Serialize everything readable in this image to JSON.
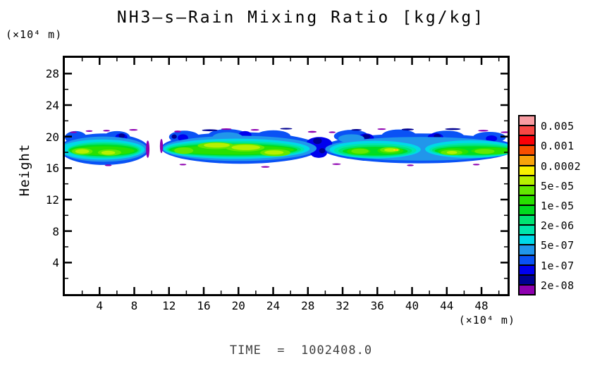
{
  "title": "NH3–s–Rain Mixing Ratio [kg/kg]",
  "time_label": "TIME  =  1002408.0",
  "axes": {
    "y_title": "Height",
    "y_unit": "(×10⁴ m)",
    "x_unit": "(×10⁴ m)",
    "x_ticks": [
      4,
      8,
      12,
      16,
      20,
      24,
      28,
      32,
      36,
      40,
      44,
      48
    ],
    "x_minor_ticks": [
      2,
      6,
      10,
      14,
      18,
      22,
      26,
      30,
      34,
      38,
      42,
      46,
      50
    ],
    "y_ticks": [
      4,
      8,
      12,
      16,
      20,
      24,
      28
    ],
    "y_minor_ticks": [
      2,
      6,
      10,
      14,
      18,
      22,
      26
    ],
    "x_range": [
      0,
      51
    ],
    "y_range": [
      0,
      30
    ]
  },
  "chart_data": {
    "type": "filled_contour",
    "title": "NH3–s–Rain Mixing Ratio [kg/kg]",
    "xlabel": "",
    "ylabel": "Height",
    "x_unit": "×10⁴ m",
    "y_unit": "×10⁴ m",
    "x_range": [
      0,
      51
    ],
    "y_range": [
      0,
      30
    ],
    "time": 1002408.0,
    "levels": [
      2e-08,
      5e-08,
      1e-07,
      2e-07,
      5e-07,
      1e-06,
      2e-06,
      5e-06,
      1e-05,
      2e-05,
      5e-05,
      0.0001,
      0.0002,
      0.0005,
      0.001,
      0.002,
      0.005
    ],
    "colorbar_labels": [
      "0.005",
      "0.001",
      "0.0002",
      "5e-05",
      "1e-05",
      "2e-06",
      "5e-07",
      "1e-07",
      "2e-08"
    ],
    "palette": [
      "#F89CA2",
      "#F84744",
      "#FB0007",
      "#F94E00",
      "#F9A30B",
      "#FAF000",
      "#B8F000",
      "#64E800",
      "#28E000",
      "#00DC20",
      "#00E373",
      "#00E6AC",
      "#00D9E8",
      "#2196EB",
      "#0A52F5",
      "#0000EE",
      "#000091",
      "#8E00B0"
    ],
    "band_summary": {
      "description": "Single quasi-horizontal rain layer between heights 16 and 21 (×10⁴ m) spanning the full x domain, gap near x 9.6–11.1, thin pinch near x 29–30, cores reach 5e-05 to 1e-04 kg/kg with an isolated 1e-04–2e-04 spot near x 38",
      "height_extent": [
        16,
        21
      ],
      "x_extent": [
        0,
        51
      ],
      "gaps_x": [
        [
          9.6,
          11.1
        ]
      ],
      "pinch_x": [
        29,
        30.3
      ],
      "core_max_level": 0.0002
    },
    "blobs": [
      [
        -0.6,
        9.7,
        18.4,
        2.0,
        14
      ],
      [
        11.1,
        29.4,
        18.55,
        2.0,
        14
      ],
      [
        29.6,
        52.0,
        18.5,
        1.9,
        14
      ],
      [
        0.0,
        2.5,
        19.9,
        0.8,
        14
      ],
      [
        4.5,
        7.5,
        19.95,
        0.75,
        14
      ],
      [
        12.0,
        15.5,
        19.95,
        0.8,
        14
      ],
      [
        16.5,
        21.0,
        20.15,
        0.8,
        14
      ],
      [
        22.0,
        26.0,
        20.05,
        0.75,
        14
      ],
      [
        31.0,
        35.0,
        20.05,
        0.8,
        14
      ],
      [
        36.5,
        40.5,
        20.1,
        0.8,
        14
      ],
      [
        42.0,
        46.0,
        20.0,
        0.75,
        14
      ],
      [
        47.0,
        50.8,
        19.9,
        0.7,
        14
      ],
      [
        5.8,
        7.2,
        19.9,
        0.5,
        15
      ],
      [
        13.0,
        14.2,
        19.85,
        0.45,
        15
      ],
      [
        20.0,
        21.5,
        20.2,
        0.5,
        15
      ],
      [
        27.8,
        30.8,
        19.1,
        0.85,
        15
      ],
      [
        28.3,
        30.2,
        17.9,
        0.6,
        15
      ],
      [
        33.8,
        35.6,
        19.8,
        0.6,
        15
      ],
      [
        41.8,
        43.6,
        19.9,
        0.55,
        15
      ],
      [
        48.5,
        49.8,
        19.75,
        0.4,
        15
      ],
      [
        6.2,
        6.9,
        20.1,
        0.3,
        16
      ],
      [
        12.3,
        12.9,
        20.0,
        0.28,
        16
      ],
      [
        28.6,
        29.6,
        19.45,
        0.4,
        16
      ],
      [
        29.3,
        30.0,
        18.2,
        0.33,
        16
      ],
      [
        34.3,
        35.2,
        20.0,
        0.3,
        16
      ],
      [
        42.5,
        43.3,
        20.05,
        0.28,
        16
      ],
      [
        -0.6,
        9.5,
        18.4,
        1.6,
        13
      ],
      [
        11.2,
        29.0,
        18.5,
        1.6,
        13
      ],
      [
        30.0,
        52.0,
        18.45,
        1.5,
        13
      ],
      [
        17.0,
        20.5,
        19.9,
        0.65,
        13
      ],
      [
        31.5,
        34.5,
        19.75,
        0.55,
        13
      ],
      [
        -0.6,
        9.2,
        18.35,
        1.28,
        12
      ],
      [
        11.35,
        28.2,
        18.45,
        1.28,
        12
      ],
      [
        30.5,
        41.0,
        18.35,
        1.12,
        12
      ],
      [
        41.5,
        52.0,
        18.4,
        1.12,
        12
      ],
      [
        0.3,
        8.8,
        18.3,
        1.05,
        11
      ],
      [
        11.6,
        27.6,
        18.4,
        1.05,
        11
      ],
      [
        31.0,
        40.5,
        18.25,
        0.9,
        11
      ],
      [
        42.0,
        52.0,
        18.32,
        0.88,
        11
      ],
      [
        0.4,
        8.6,
        18.28,
        0.88,
        10
      ],
      [
        11.8,
        27.2,
        18.36,
        0.88,
        10
      ],
      [
        31.5,
        40.0,
        18.2,
        0.72,
        10
      ],
      [
        42.3,
        52.0,
        18.28,
        0.7,
        10
      ],
      [
        0.5,
        8.4,
        18.25,
        0.72,
        9
      ],
      [
        12.0,
        26.8,
        18.33,
        0.72,
        9
      ],
      [
        32.0,
        39.5,
        18.15,
        0.55,
        9
      ],
      [
        42.6,
        51.8,
        18.22,
        0.55,
        9
      ],
      [
        0.6,
        8.0,
        18.2,
        0.56,
        8
      ],
      [
        12.3,
        26.4,
        18.3,
        0.58,
        8
      ],
      [
        32.5,
        35.2,
        18.12,
        0.45,
        8
      ],
      [
        36.0,
        39.0,
        18.22,
        0.45,
        8
      ],
      [
        43.0,
        46.5,
        18.08,
        0.45,
        8
      ],
      [
        46.8,
        51.6,
        18.18,
        0.42,
        8
      ],
      [
        0.8,
        3.2,
        18.12,
        0.42,
        7
      ],
      [
        3.8,
        6.5,
        17.98,
        0.4,
        7
      ],
      [
        12.6,
        14.8,
        18.22,
        0.42,
        7
      ],
      [
        15.3,
        19.5,
        18.85,
        0.45,
        7
      ],
      [
        18.5,
        23.0,
        18.6,
        0.5,
        7
      ],
      [
        22.5,
        26.0,
        17.95,
        0.45,
        7
      ],
      [
        33.0,
        35.0,
        18.15,
        0.32,
        7
      ],
      [
        36.3,
        38.6,
        18.3,
        0.35,
        7
      ],
      [
        43.3,
        45.8,
        17.98,
        0.33,
        7
      ],
      [
        47.2,
        49.5,
        18.12,
        0.32,
        7
      ],
      [
        1.2,
        2.8,
        18.12,
        0.28,
        6
      ],
      [
        4.2,
        5.8,
        17.95,
        0.25,
        6
      ],
      [
        16.0,
        19.0,
        18.9,
        0.3,
        6
      ],
      [
        19.2,
        22.5,
        18.62,
        0.33,
        6
      ],
      [
        23.0,
        25.2,
        17.98,
        0.27,
        6
      ],
      [
        36.8,
        38.2,
        18.3,
        0.22,
        6
      ],
      [
        44.0,
        45.2,
        17.98,
        0.2,
        6
      ],
      [
        37.85,
        38.45,
        18.3,
        0.13,
        5
      ],
      [
        38.0,
        38.3,
        18.3,
        0.07,
        4
      ],
      [
        7.4,
        8.4,
        20.85,
        0.1,
        17
      ],
      [
        12.6,
        13.4,
        20.65,
        0.12,
        17
      ],
      [
        15.8,
        17.6,
        20.8,
        0.12,
        16
      ],
      [
        18.0,
        19.2,
        20.95,
        0.1,
        17
      ],
      [
        21.4,
        22.4,
        20.85,
        0.1,
        17
      ],
      [
        24.8,
        26.2,
        21.0,
        0.1,
        16
      ],
      [
        28.0,
        29.0,
        20.6,
        0.12,
        17
      ],
      [
        30.4,
        31.2,
        20.55,
        0.1,
        17
      ],
      [
        33.0,
        34.2,
        20.85,
        0.1,
        16
      ],
      [
        36.0,
        37.0,
        20.95,
        0.1,
        17
      ],
      [
        38.8,
        40.2,
        20.9,
        0.12,
        16
      ],
      [
        43.8,
        45.6,
        20.95,
        0.12,
        16
      ],
      [
        47.6,
        48.8,
        20.75,
        0.1,
        17
      ],
      [
        50.2,
        51.3,
        20.55,
        0.1,
        17
      ],
      [
        0.6,
        1.4,
        20.55,
        0.1,
        17
      ],
      [
        2.4,
        3.2,
        20.7,
        0.1,
        17
      ],
      [
        4.4,
        5.2,
        20.75,
        0.1,
        17
      ],
      [
        4.6,
        5.4,
        16.35,
        0.1,
        17
      ],
      [
        13.2,
        14.0,
        16.45,
        0.1,
        17
      ],
      [
        22.6,
        23.6,
        16.15,
        0.1,
        17
      ],
      [
        30.8,
        31.8,
        16.5,
        0.1,
        17
      ],
      [
        39.4,
        40.2,
        16.35,
        0.1,
        17
      ],
      [
        47.0,
        47.8,
        16.45,
        0.1,
        17
      ],
      [
        9.35,
        9.75,
        18.4,
        1.1,
        17
      ],
      [
        10.95,
        11.3,
        18.8,
        0.9,
        17
      ]
    ]
  }
}
